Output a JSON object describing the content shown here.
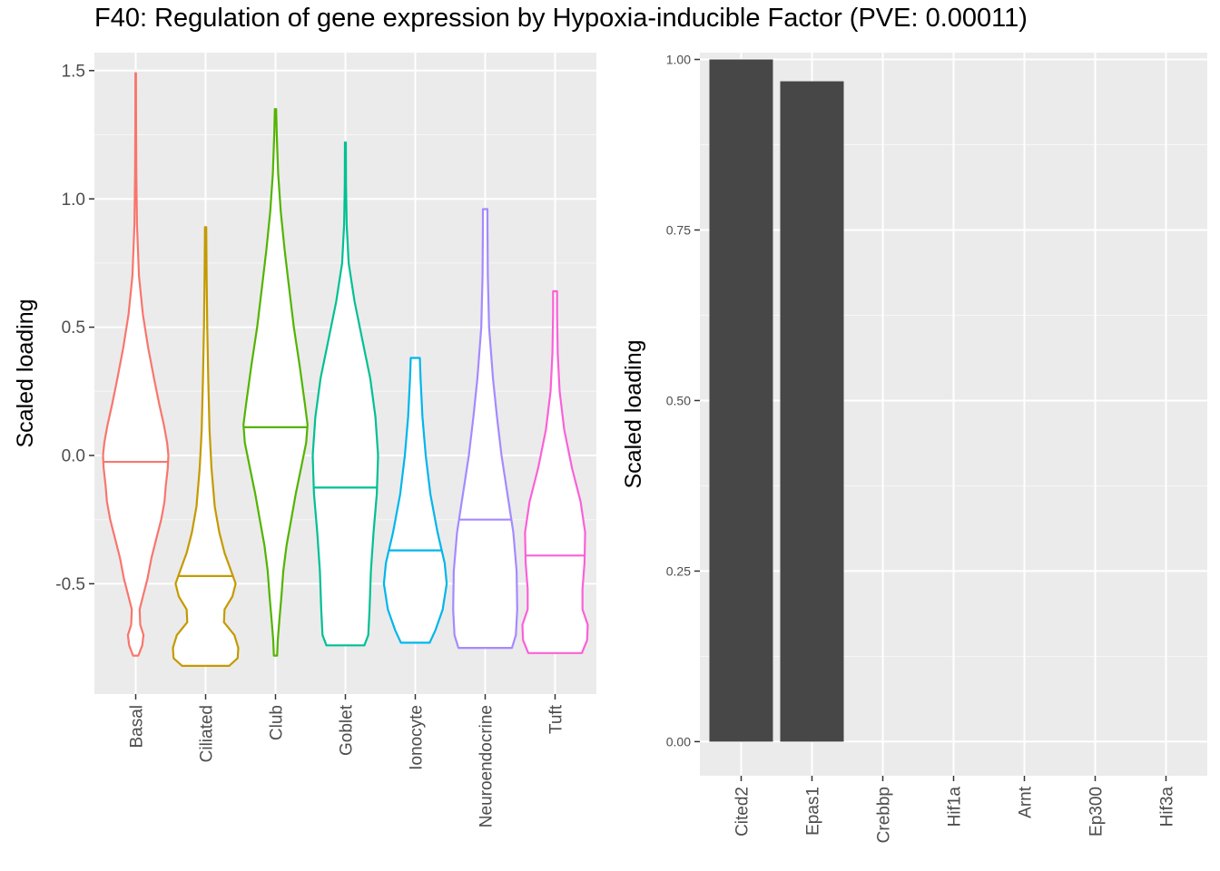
{
  "title": "F40: Regulation of gene expression by Hypoxia-inducible Factor (PVE: 0.00011)",
  "chart_data": [
    {
      "type": "violin",
      "ylabel": "Scaled loading",
      "xlabel": "",
      "ylim": [
        -0.93,
        1.57
      ],
      "y_ticks": [
        -0.5,
        0.0,
        0.5,
        1.0,
        1.5
      ],
      "y_tick_labels": [
        "-0.5",
        "0.0",
        "0.5",
        "1.0",
        "1.5"
      ],
      "grid": true,
      "legend": "none",
      "categories": [
        "Basal",
        "Ciliated",
        "Club",
        "Goblet",
        "Ionocyte",
        "Neuroendocrine",
        "Tuft"
      ],
      "series": [
        {
          "category": "Basal",
          "color": "#F8766D",
          "median": -0.025,
          "min": -0.78,
          "max": 1.49,
          "density": [
            [
              -0.78,
              0.08
            ],
            [
              -0.74,
              0.2
            ],
            [
              -0.7,
              0.24
            ],
            [
              -0.66,
              0.14
            ],
            [
              -0.6,
              0.12
            ],
            [
              -0.55,
              0.22
            ],
            [
              -0.48,
              0.36
            ],
            [
              -0.4,
              0.48
            ],
            [
              -0.33,
              0.62
            ],
            [
              -0.25,
              0.78
            ],
            [
              -0.18,
              0.88
            ],
            [
              -0.12,
              0.92
            ],
            [
              -0.05,
              0.98
            ],
            [
              0.0,
              1.0
            ],
            [
              0.05,
              0.96
            ],
            [
              0.12,
              0.86
            ],
            [
              0.2,
              0.72
            ],
            [
              0.3,
              0.56
            ],
            [
              0.42,
              0.38
            ],
            [
              0.55,
              0.22
            ],
            [
              0.7,
              0.1
            ],
            [
              0.9,
              0.04
            ],
            [
              1.1,
              0.02
            ],
            [
              1.3,
              0.012
            ],
            [
              1.49,
              0.008
            ]
          ]
        },
        {
          "category": "Ciliated",
          "color": "#C49A00",
          "median": -0.47,
          "min": -0.82,
          "max": 0.89,
          "density": [
            [
              -0.82,
              0.72
            ],
            [
              -0.79,
              0.98
            ],
            [
              -0.75,
              1.0
            ],
            [
              -0.7,
              0.88
            ],
            [
              -0.65,
              0.56
            ],
            [
              -0.6,
              0.58
            ],
            [
              -0.55,
              0.82
            ],
            [
              -0.5,
              0.92
            ],
            [
              -0.45,
              0.78
            ],
            [
              -0.38,
              0.58
            ],
            [
              -0.3,
              0.42
            ],
            [
              -0.2,
              0.28
            ],
            [
              -0.05,
              0.18
            ],
            [
              0.1,
              0.12
            ],
            [
              0.3,
              0.08
            ],
            [
              0.5,
              0.05
            ],
            [
              0.7,
              0.03
            ],
            [
              0.89,
              0.02
            ]
          ]
        },
        {
          "category": "Club",
          "color": "#53B400",
          "median": 0.11,
          "min": -0.78,
          "max": 1.35,
          "density": [
            [
              -0.78,
              0.05
            ],
            [
              -0.72,
              0.07
            ],
            [
              -0.64,
              0.12
            ],
            [
              -0.55,
              0.18
            ],
            [
              -0.45,
              0.24
            ],
            [
              -0.35,
              0.34
            ],
            [
              -0.25,
              0.48
            ],
            [
              -0.15,
              0.62
            ],
            [
              -0.05,
              0.78
            ],
            [
              0.05,
              0.94
            ],
            [
              0.12,
              0.98
            ],
            [
              0.2,
              0.9
            ],
            [
              0.35,
              0.74
            ],
            [
              0.5,
              0.56
            ],
            [
              0.65,
              0.42
            ],
            [
              0.8,
              0.28
            ],
            [
              0.95,
              0.16
            ],
            [
              1.1,
              0.08
            ],
            [
              1.25,
              0.04
            ],
            [
              1.35,
              0.02
            ]
          ]
        },
        {
          "category": "Goblet",
          "color": "#00C094",
          "median": -0.125,
          "min": -0.74,
          "max": 1.22,
          "density": [
            [
              -0.74,
              0.58
            ],
            [
              -0.7,
              0.7
            ],
            [
              -0.6,
              0.74
            ],
            [
              -0.45,
              0.78
            ],
            [
              -0.3,
              0.86
            ],
            [
              -0.15,
              0.96
            ],
            [
              0.0,
              1.0
            ],
            [
              0.15,
              0.92
            ],
            [
              0.3,
              0.76
            ],
            [
              0.45,
              0.52
            ],
            [
              0.6,
              0.28
            ],
            [
              0.75,
              0.1
            ],
            [
              0.9,
              0.04
            ],
            [
              1.05,
              0.02
            ],
            [
              1.22,
              0.015
            ]
          ]
        },
        {
          "category": "Ionocyte",
          "color": "#00B6EB",
          "median": -0.37,
          "min": -0.73,
          "max": 0.38,
          "density": [
            [
              -0.73,
              0.44
            ],
            [
              -0.68,
              0.62
            ],
            [
              -0.6,
              0.84
            ],
            [
              -0.5,
              0.96
            ],
            [
              -0.42,
              0.9
            ],
            [
              -0.3,
              0.68
            ],
            [
              -0.15,
              0.46
            ],
            [
              0.0,
              0.32
            ],
            [
              0.15,
              0.22
            ],
            [
              0.3,
              0.16
            ],
            [
              0.38,
              0.14
            ]
          ]
        },
        {
          "category": "Neuroendocrine",
          "color": "#A58AFF",
          "median": -0.25,
          "min": -0.75,
          "max": 0.96,
          "density": [
            [
              -0.75,
              0.82
            ],
            [
              -0.7,
              0.94
            ],
            [
              -0.6,
              0.98
            ],
            [
              -0.45,
              0.96
            ],
            [
              -0.3,
              0.86
            ],
            [
              -0.15,
              0.68
            ],
            [
              0.0,
              0.5
            ],
            [
              0.15,
              0.36
            ],
            [
              0.3,
              0.24
            ],
            [
              0.5,
              0.12
            ],
            [
              0.7,
              0.08
            ],
            [
              0.9,
              0.07
            ],
            [
              0.96,
              0.07
            ]
          ]
        },
        {
          "category": "Tuft",
          "color": "#FB61D7",
          "median": -0.39,
          "min": -0.77,
          "max": 0.64,
          "density": [
            [
              -0.77,
              0.82
            ],
            [
              -0.72,
              0.98
            ],
            [
              -0.66,
              1.0
            ],
            [
              -0.6,
              0.84
            ],
            [
              -0.52,
              0.84
            ],
            [
              -0.42,
              0.9
            ],
            [
              -0.3,
              0.92
            ],
            [
              -0.18,
              0.78
            ],
            [
              -0.05,
              0.52
            ],
            [
              0.1,
              0.28
            ],
            [
              0.25,
              0.14
            ],
            [
              0.4,
              0.08
            ],
            [
              0.55,
              0.06
            ],
            [
              0.64,
              0.06
            ]
          ]
        }
      ]
    },
    {
      "type": "bar",
      "ylabel": "Scaled loading",
      "xlabel": "",
      "ylim": [
        -0.05,
        1.01
      ],
      "y_ticks": [
        0.0,
        0.25,
        0.5,
        0.75,
        1.0
      ],
      "y_tick_labels": [
        "0.00",
        "0.25",
        "0.50",
        "0.75",
        "1.00"
      ],
      "grid": true,
      "legend": "none",
      "bar_color": "#474747",
      "categories": [
        "Cited2",
        "Epas1",
        "Crebbp",
        "Hif1a",
        "Arnt",
        "Ep300",
        "Hif3a"
      ],
      "values": [
        1.0,
        0.968,
        0.0,
        0.0,
        0.0,
        0.0,
        0.0
      ]
    }
  ]
}
